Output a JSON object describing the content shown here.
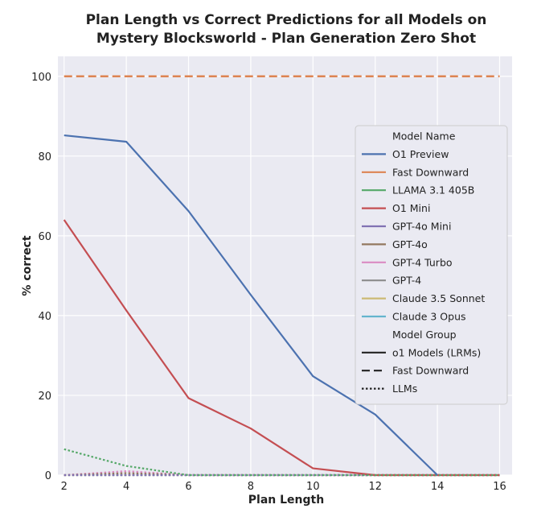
{
  "chart_data": {
    "type": "line",
    "title": [
      "Plan Length vs Correct Predictions for all Models on",
      "Mystery Blocksworld - Plan Generation Zero Shot"
    ],
    "xlabel": "Plan Length",
    "ylabel": "% correct",
    "xlim": [
      1.8,
      16.4
    ],
    "ylim": [
      0,
      105
    ],
    "xticks": [
      2,
      4,
      6,
      8,
      10,
      12,
      14,
      16
    ],
    "yticks": [
      0,
      20,
      40,
      60,
      80,
      100
    ],
    "grid": true,
    "legend_position": "center-right",
    "series": [
      {
        "name": "O1 Preview",
        "group": "o1 Models (LRMs)",
        "color": "#4c72b0",
        "style": "solid",
        "x": [
          2,
          4,
          6,
          8,
          10,
          12,
          14
        ],
        "y": [
          85.2,
          83.6,
          66.2,
          45.2,
          24.8,
          15.2,
          0
        ]
      },
      {
        "name": "Fast Downward",
        "group": "Fast Downward",
        "color": "#dd8452",
        "style": "dashed",
        "x": [
          2,
          4,
          6,
          8,
          10,
          12,
          14,
          16
        ],
        "y": [
          100,
          100,
          100,
          100,
          100,
          100,
          100,
          100
        ]
      },
      {
        "name": "LLAMA 3.1 405B",
        "group": "LLMs",
        "color": "#55a868",
        "style": "dotted",
        "x": [
          2,
          4,
          6,
          8,
          10,
          12,
          14,
          16
        ],
        "y": [
          6.5,
          2.3,
          0,
          0,
          0,
          0,
          0,
          0
        ]
      },
      {
        "name": "O1 Mini",
        "group": "o1 Models (LRMs)",
        "color": "#c44e52",
        "style": "solid",
        "x": [
          2,
          4,
          6,
          8,
          10,
          12,
          14,
          16
        ],
        "y": [
          64,
          41.3,
          19.3,
          11.7,
          1.7,
          0,
          0,
          0
        ]
      },
      {
        "name": "GPT-4o Mini",
        "group": "LLMs",
        "color": "#8172b3",
        "style": "dotted",
        "x": [
          2,
          4,
          6,
          8,
          10,
          12,
          14,
          16
        ],
        "y": [
          0,
          0,
          0,
          0,
          0,
          0,
          0,
          0
        ]
      },
      {
        "name": "GPT-4o",
        "group": "LLMs",
        "color": "#937860",
        "style": "dotted",
        "x": [
          2,
          4,
          6,
          8,
          10,
          12,
          14,
          16
        ],
        "y": [
          0,
          0.5,
          0,
          0,
          0,
          0,
          0,
          0
        ]
      },
      {
        "name": "GPT-4 Turbo",
        "group": "LLMs",
        "color": "#da8bc3",
        "style": "dotted",
        "x": [
          2,
          4,
          6,
          8,
          10,
          12,
          14,
          16
        ],
        "y": [
          0,
          1.0,
          0,
          0,
          0,
          0,
          0,
          0
        ]
      },
      {
        "name": "GPT-4",
        "group": "LLMs",
        "color": "#8c8c8c",
        "style": "dotted",
        "x": [
          2,
          4,
          6,
          8,
          10,
          12,
          14,
          16
        ],
        "y": [
          0,
          0,
          0,
          0,
          0,
          0,
          0,
          0
        ]
      },
      {
        "name": "Claude 3.5 Sonnet",
        "group": "LLMs",
        "color": "#ccb974",
        "style": "dotted",
        "x": [
          2,
          4,
          6,
          8,
          10,
          12,
          14,
          16
        ],
        "y": [
          0,
          0,
          0,
          0,
          0,
          0,
          0,
          0
        ]
      },
      {
        "name": "Claude 3 Opus",
        "group": "LLMs",
        "color": "#64b5cd",
        "style": "dotted",
        "x": [
          2,
          4,
          6,
          8,
          10,
          12,
          14,
          16
        ],
        "y": [
          0,
          0,
          0,
          0,
          0,
          0,
          0,
          0
        ]
      }
    ],
    "legend": {
      "header_models": "Model Name",
      "header_groups": "Model Group",
      "groups": [
        {
          "name": "o1 Models (LRMs)",
          "style": "solid"
        },
        {
          "name": "Fast Downward",
          "style": "dashed"
        },
        {
          "name": "LLMs",
          "style": "dotted"
        }
      ]
    }
  },
  "colors": {
    "plot_background": "#eaeaf2",
    "grid": "#ffffff",
    "legend_background": "#eaeaf2",
    "legend_border": "#cccccc",
    "group_line": "#222222"
  }
}
